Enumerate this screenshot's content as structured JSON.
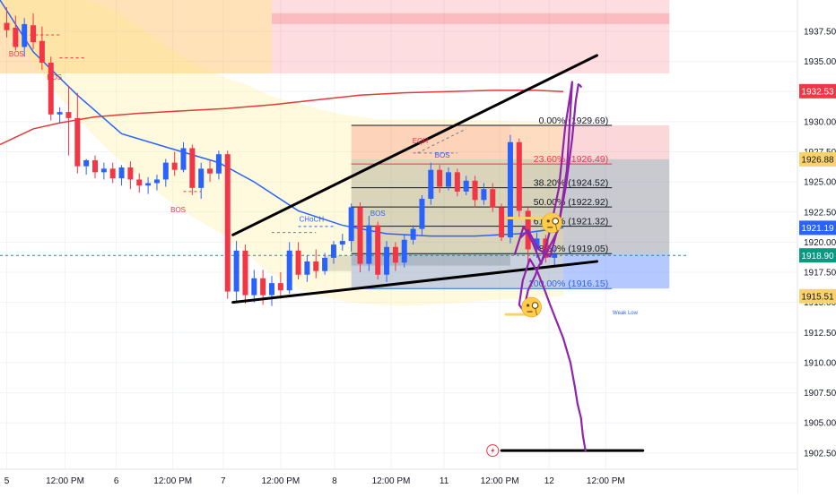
{
  "chart_data": {
    "type": "candlestick",
    "title": "",
    "price_axis": {
      "ylim": [
        1901.15,
        1940.1
      ],
      "ticks": [
        "1937.50",
        "1935.00",
        "1932.50",
        "1930.00",
        "1927.50",
        "1925.00",
        "1922.50",
        "1920.00",
        "1917.50",
        "1915.00",
        "1912.50",
        "1910.00",
        "1907.50",
        "1905.00",
        "1902.50"
      ],
      "tick_values": [
        1937.5,
        1935,
        1932.5,
        1930,
        1927.5,
        1925,
        1922.5,
        1920,
        1917.5,
        1915,
        1912.5,
        1910,
        1907.5,
        1905,
        1902.5
      ],
      "badges": [
        {
          "text": "1932.53",
          "value": 1932.53,
          "color": "#f23645"
        },
        {
          "text": "1926.88",
          "value": 1926.88,
          "color": "#f9d26b"
        },
        {
          "text": "1921.19",
          "value": 1921.19,
          "color": "#2962ff"
        },
        {
          "text": "1918.90",
          "value": 1918.9,
          "color": "#089981"
        },
        {
          "text": "1915.51",
          "value": 1915.51,
          "color": "#f9d26b"
        }
      ]
    },
    "time_axis": {
      "labels": [
        "5",
        "12:00 PM",
        "6",
        "12:00 PM",
        "7",
        "12:00 PM",
        "8",
        "12:00 PM",
        "11",
        "12:00 PM",
        "12",
        "12:00 PM"
      ],
      "label_bars": [
        0,
        6.6,
        12.4,
        18.8,
        24.5,
        31,
        37.1,
        43.5,
        49.5,
        55.8,
        61.4,
        67.8
      ]
    },
    "candles": [
      {
        "o": 1938.2,
        "h": 1939.5,
        "c": 1937.6,
        "l": 1937.0
      },
      {
        "o": 1937.8,
        "h": 1938.8,
        "c": 1936.2,
        "l": 1935.9
      },
      {
        "o": 1936.2,
        "h": 1938.6,
        "c": 1938.1,
        "l": 1935.4
      },
      {
        "o": 1938.0,
        "h": 1939.0,
        "c": 1936.6,
        "l": 1936.0
      },
      {
        "o": 1936.7,
        "h": 1937.9,
        "c": 1934.9,
        "l": 1934.3
      },
      {
        "o": 1934.9,
        "h": 1935.4,
        "c": 1930.6,
        "l": 1930.1
      },
      {
        "o": 1930.6,
        "h": 1931.2,
        "c": 1930.8,
        "l": 1929.9
      },
      {
        "o": 1930.8,
        "h": 1933.0,
        "c": 1930.3,
        "l": 1927.2
      },
      {
        "o": 1930.3,
        "h": 1932.4,
        "c": 1926.3,
        "l": 1925.7
      },
      {
        "o": 1926.3,
        "h": 1926.9,
        "c": 1926.8,
        "l": 1925.6
      },
      {
        "o": 1926.8,
        "h": 1927.2,
        "c": 1925.8,
        "l": 1925.3
      },
      {
        "o": 1925.8,
        "h": 1926.6,
        "c": 1926.1,
        "l": 1925.2
      },
      {
        "o": 1926.1,
        "h": 1926.6,
        "c": 1925.3,
        "l": 1924.9
      },
      {
        "o": 1925.3,
        "h": 1926.4,
        "c": 1926.2,
        "l": 1924.7
      },
      {
        "o": 1926.2,
        "h": 1926.7,
        "c": 1925.2,
        "l": 1924.4
      },
      {
        "o": 1925.2,
        "h": 1925.7,
        "c": 1924.7,
        "l": 1924.1
      },
      {
        "o": 1924.7,
        "h": 1925.4,
        "c": 1924.9,
        "l": 1924.0
      },
      {
        "o": 1924.9,
        "h": 1925.6,
        "c": 1925.2,
        "l": 1924.3
      },
      {
        "o": 1925.2,
        "h": 1926.9,
        "c": 1926.6,
        "l": 1924.6
      },
      {
        "o": 1926.6,
        "h": 1927.5,
        "c": 1926.0,
        "l": 1925.5
      },
      {
        "o": 1926.0,
        "h": 1928.3,
        "c": 1927.8,
        "l": 1925.8
      },
      {
        "o": 1927.8,
        "h": 1928.1,
        "c": 1924.5,
        "l": 1923.9
      },
      {
        "o": 1924.5,
        "h": 1926.6,
        "c": 1926.1,
        "l": 1923.6
      },
      {
        "o": 1926.1,
        "h": 1926.8,
        "c": 1925.7,
        "l": 1925.0
      },
      {
        "o": 1925.7,
        "h": 1927.6,
        "c": 1927.3,
        "l": 1925.2
      },
      {
        "o": 1927.3,
        "h": 1927.6,
        "c": 1915.9,
        "l": 1915.3
      },
      {
        "o": 1915.9,
        "h": 1920.1,
        "c": 1919.3,
        "l": 1915.0
      },
      {
        "o": 1919.3,
        "h": 1919.8,
        "c": 1915.6,
        "l": 1914.9
      },
      {
        "o": 1915.6,
        "h": 1917.7,
        "c": 1917.0,
        "l": 1915.0
      },
      {
        "o": 1917.0,
        "h": 1917.7,
        "c": 1915.6,
        "l": 1914.8
      },
      {
        "o": 1915.6,
        "h": 1917.2,
        "c": 1916.6,
        "l": 1914.7
      },
      {
        "o": 1916.6,
        "h": 1917.5,
        "c": 1916.0,
        "l": 1915.3
      },
      {
        "o": 1916.0,
        "h": 1920.0,
        "c": 1919.3,
        "l": 1915.7
      },
      {
        "o": 1919.3,
        "h": 1920.0,
        "c": 1917.3,
        "l": 1916.9
      },
      {
        "o": 1917.3,
        "h": 1918.9,
        "c": 1918.4,
        "l": 1916.7
      },
      {
        "o": 1918.4,
        "h": 1919.4,
        "c": 1917.6,
        "l": 1917.0
      },
      {
        "o": 1917.6,
        "h": 1919.1,
        "c": 1918.7,
        "l": 1917.3
      },
      {
        "o": 1918.7,
        "h": 1920.1,
        "c": 1919.8,
        "l": 1918.2
      },
      {
        "o": 1919.8,
        "h": 1920.7,
        "c": 1920.1,
        "l": 1919.3
      },
      {
        "o": 1920.1,
        "h": 1923.2,
        "c": 1922.9,
        "l": 1919.2
      },
      {
        "o": 1922.9,
        "h": 1923.3,
        "c": 1918.2,
        "l": 1917.5
      },
      {
        "o": 1918.2,
        "h": 1922.2,
        "c": 1921.4,
        "l": 1917.6
      },
      {
        "o": 1921.4,
        "h": 1921.7,
        "c": 1917.3,
        "l": 1916.9
      },
      {
        "o": 1917.3,
        "h": 1920.1,
        "c": 1919.6,
        "l": 1916.7
      },
      {
        "o": 1919.6,
        "h": 1920.0,
        "c": 1918.3,
        "l": 1917.6
      },
      {
        "o": 1918.3,
        "h": 1920.6,
        "c": 1920.2,
        "l": 1917.9
      },
      {
        "o": 1920.2,
        "h": 1921.4,
        "c": 1921.1,
        "l": 1919.8
      },
      {
        "o": 1921.1,
        "h": 1923.9,
        "c": 1923.6,
        "l": 1920.6
      },
      {
        "o": 1923.6,
        "h": 1926.6,
        "c": 1926.0,
        "l": 1923.1
      },
      {
        "o": 1926.0,
        "h": 1926.4,
        "c": 1924.6,
        "l": 1924.1
      },
      {
        "o": 1924.6,
        "h": 1926.2,
        "c": 1925.8,
        "l": 1924.3
      },
      {
        "o": 1925.8,
        "h": 1926.1,
        "c": 1924.2,
        "l": 1923.8
      },
      {
        "o": 1924.2,
        "h": 1925.5,
        "c": 1925.1,
        "l": 1923.9
      },
      {
        "o": 1925.1,
        "h": 1925.5,
        "c": 1923.5,
        "l": 1922.9
      },
      {
        "o": 1923.5,
        "h": 1924.9,
        "c": 1924.4,
        "l": 1923.1
      },
      {
        "o": 1924.4,
        "h": 1924.9,
        "c": 1922.9,
        "l": 1922.5
      },
      {
        "o": 1922.9,
        "h": 1923.2,
        "c": 1920.4,
        "l": 1920.1
      },
      {
        "o": 1920.4,
        "h": 1928.9,
        "c": 1928.3,
        "l": 1919.9
      },
      {
        "o": 1928.3,
        "h": 1928.6,
        "c": 1922.6,
        "l": 1922.1
      },
      {
        "o": 1922.6,
        "h": 1922.9,
        "c": 1919.4,
        "l": 1918.0
      },
      {
        "o": 1919.4,
        "h": 1920.8,
        "c": 1920.3,
        "l": 1918.7
      },
      {
        "o": 1920.3,
        "h": 1920.6,
        "c": 1918.7,
        "l": 1918.3
      },
      {
        "o": 1918.7,
        "h": 1919.6,
        "c": 1919.0,
        "l": 1918.1
      }
    ],
    "moving_averages": [
      {
        "color": "#2962ff",
        "x": [
          -2,
          3,
          8,
          13,
          18,
          24,
          28,
          33,
          38,
          43,
          48,
          53,
          58,
          63
        ],
        "y": [
          1940.1,
          1935.8,
          1932.2,
          1929.0,
          1927.9,
          1926.6,
          1925.0,
          1922.6,
          1921.4,
          1920.7,
          1920.5,
          1920.5,
          1920.7,
          1921.2
        ]
      },
      {
        "color": "#e53935",
        "x": [
          -2,
          3,
          6,
          10,
          15,
          20,
          25,
          30,
          35,
          40,
          45,
          50,
          55,
          60,
          63
        ],
        "y": [
          1928.1,
          1929.4,
          1929.9,
          1930.4,
          1930.7,
          1930.9,
          1931.1,
          1931.4,
          1931.8,
          1932.2,
          1932.4,
          1932.5,
          1932.6,
          1932.6,
          1932.5
        ]
      }
    ],
    "ma_cloud": {
      "x": [
        -2,
        3,
        6,
        9,
        12,
        15,
        18,
        21,
        25,
        27,
        30,
        34,
        38,
        42,
        45,
        50,
        55,
        60,
        63
      ],
      "upper": [
        1940.1,
        1940.1,
        1940.1,
        1940.1,
        1939.4,
        1937.9,
        1936.3,
        1934.9,
        1933.6,
        1933.1,
        1932.1,
        1931.3,
        1930.6,
        1930.2,
        1930.2,
        1930.2,
        1930.1,
        1930.0,
        1930.0
      ],
      "lower": [
        1938.0,
        1935.0,
        1932.0,
        1929.5,
        1927.3,
        1925.4,
        1923.6,
        1922.1,
        1920.4,
        1919.1,
        1917.3,
        1915.8,
        1915.1,
        1914.8,
        1914.7,
        1914.9,
        1915.2,
        1915.4,
        1915.5
      ]
    },
    "zones": [
      {
        "x1": -2,
        "x2": 30,
        "y1": 1934.0,
        "y2": 1940.1,
        "color": "rgba(255,152,0,0.28)"
      },
      {
        "x1": 30,
        "x2": 75,
        "y1": 1934.0,
        "y2": 1940.1,
        "color": "rgba(242,54,69,0.17)"
      },
      {
        "x1": 30,
        "x2": 75,
        "y1": 1938.1,
        "y2": 1939.0,
        "color": "rgba(242,54,69,0.20)"
      },
      {
        "x1": 39,
        "x2": 57,
        "y1": 1926.88,
        "y2": 1929.69,
        "color": "rgba(242,54,69,0.26)"
      },
      {
        "x1": 39,
        "x2": 57,
        "y1": 1918.05,
        "y2": 1926.88,
        "color": "rgba(120,123,134,0.38)"
      },
      {
        "x1": 57,
        "x2": 75,
        "y1": 1926.88,
        "y2": 1929.69,
        "color": "rgba(242,54,69,0.20)"
      },
      {
        "x1": 57,
        "x2": 75,
        "y1": 1919.05,
        "y2": 1926.88,
        "color": "rgba(120,123,134,0.40)"
      },
      {
        "x1": 39,
        "x2": 75,
        "y1": 1916.15,
        "y2": 1919.05,
        "color": "rgba(41,98,255,0.34)"
      },
      {
        "x1": 36,
        "x2": 39,
        "y1": 1917.6,
        "y2": 1918.9,
        "color": "rgba(120,123,134,0.28)"
      }
    ],
    "fibonacci": {
      "x_start": 39,
      "x_end": 68.5,
      "levels": [
        {
          "label": "0.00% (1929.69)",
          "price": 1929.69,
          "color": "#131722"
        },
        {
          "label": "23.60% (1926.49)",
          "price": 1926.49,
          "color": "#f23645"
        },
        {
          "label": "38.20% (1924.52)",
          "price": 1924.52,
          "color": "#131722"
        },
        {
          "label": "50.00% (1922.92)",
          "price": 1922.92,
          "color": "#131722"
        },
        {
          "label": "61.80% (1921.32)",
          "price": 1921.32,
          "color": "#131722"
        },
        {
          "label": "78.60% (1919.05)",
          "price": 1919.05,
          "color": "#131722"
        },
        {
          "label": "100.00% (1916.15)",
          "price": 1916.15,
          "color": "#2962ff"
        }
      ]
    },
    "trend_lines": [
      {
        "x1": 25.6,
        "y1": 1920.6,
        "x2": 66.8,
        "y2": 1935.5,
        "color": "#000000",
        "width": 3
      },
      {
        "x1": 25.6,
        "y1": 1915.0,
        "x2": 66.8,
        "y2": 1918.4,
        "color": "#000000",
        "width": 3
      },
      {
        "x1": 56,
        "y1": 1902.7,
        "x2": 72,
        "y2": 1902.7,
        "color": "#000000",
        "width": 3
      },
      {
        "x1": 56.5,
        "y1": 1922.0,
        "x2": 60.5,
        "y2": 1922.0,
        "color": "#f9d26b",
        "width": 3
      },
      {
        "x1": 56.5,
        "y1": 1914.0,
        "x2": 59.5,
        "y2": 1914.0,
        "color": "#f9d26b",
        "width": 3
      }
    ],
    "dashed_lines": [
      {
        "x1": 46,
        "y1": 1927.4,
        "x2": 51,
        "y2": 1927.4,
        "color": "#787b86"
      },
      {
        "x1": 46.5,
        "y1": 1927.4,
        "x2": 52,
        "y2": 1929.4,
        "color": "#787b86"
      },
      {
        "x1": -2,
        "y1": 1918.9,
        "x2": 77,
        "y2": 1918.9,
        "color": "#089981"
      },
      {
        "x1": 33,
        "y1": 1921.3,
        "x2": 37,
        "y2": 1921.3,
        "color": "#2962ff"
      },
      {
        "x1": 2,
        "y1": 1937.2,
        "x2": 6,
        "y2": 1937.2,
        "color": "#f23645"
      },
      {
        "x1": 6,
        "y1": 1935.3,
        "x2": 9,
        "y2": 1935.3,
        "color": "#f23645"
      },
      {
        "x1": 20,
        "y1": 1924.2,
        "x2": 22,
        "y2": 1924.2,
        "color": "#f23645"
      },
      {
        "x1": 30,
        "y1": 1920.8,
        "x2": 35,
        "y2": 1920.8,
        "color": "#787b86"
      }
    ],
    "annotations": [
      {
        "text": "BOS",
        "x": 1.1,
        "y": 1935.4,
        "color": "#f23645"
      },
      {
        "text": "BOS",
        "x": 5.4,
        "y": 1933.5,
        "color": "#f23645"
      },
      {
        "text": "BOS",
        "x": 19.4,
        "y": 1922.5,
        "color": "#f23645"
      },
      {
        "text": "CHoCH",
        "x": 34.5,
        "y": 1921.7,
        "color": "#2962ff"
      },
      {
        "text": "BOS",
        "x": 42,
        "y": 1922.2,
        "color": "#2962ff"
      },
      {
        "text": "EQH",
        "x": 46.8,
        "y": 1928.2,
        "color": "#f23645"
      },
      {
        "text": "BOS",
        "x": 49.3,
        "y": 1927.0,
        "color": "#2962ff"
      },
      {
        "text": "Weak Low",
        "x": 70,
        "y": 1914.0,
        "color": "#2962ff"
      }
    ],
    "projection_path": {
      "color": "#8e24aa",
      "x": [
        57.5,
        58.5,
        59.5,
        60.5,
        61.5,
        62.5,
        63.2,
        64.0,
        63.4,
        62.4,
        61.0,
        60.2,
        59.8,
        59.4,
        59.0,
        58.5,
        58.0,
        58.4,
        59.2,
        60.1,
        60.9,
        61.5,
        62.2,
        63.0,
        63.8,
        64.3,
        64.6,
        65.0,
        65.2,
        65.5
      ],
      "y": [
        1919.0,
        1921.3,
        1920.0,
        1918.2,
        1921.0,
        1924.5,
        1929.5,
        1933.3,
        1926.0,
        1921.0,
        1919.0,
        1918.0,
        1917.2,
        1916.6,
        1916.0,
        1914.3,
        1914.8,
        1916.8,
        1918.6,
        1917.5,
        1916.0,
        1914.8,
        1913.5,
        1912.0,
        1910.0,
        1908.0,
        1906.6,
        1905.4,
        1904.0,
        1902.7
      ]
    },
    "projection_path2": {
      "color": "#8e24aa",
      "x": [
        58.2,
        59.0,
        60.2,
        61.5,
        62.5,
        63.3,
        64.0,
        64.4,
        64.7,
        64.9,
        65.0
      ],
      "y": [
        1920.4,
        1921.0,
        1919.4,
        1918.8,
        1921.5,
        1924.7,
        1928.6,
        1931.7,
        1933.1,
        1933.0,
        1932.9
      ]
    },
    "emoji_markers": [
      {
        "icon": "monocle-face-icon",
        "x": 61.7,
        "y": 1921.6
      },
      {
        "icon": "monocle-face-icon",
        "x": 59.4,
        "y": 1914.6
      }
    ],
    "grid": true
  }
}
